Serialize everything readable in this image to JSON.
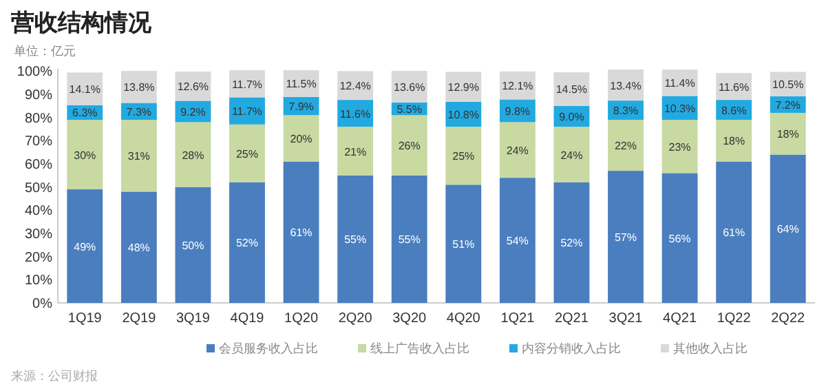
{
  "chart_data": {
    "type": "bar",
    "stacked": true,
    "title": "营收结构情况",
    "subtitle": "单位：亿元",
    "categories": [
      "1Q19",
      "2Q19",
      "3Q19",
      "4Q19",
      "1Q20",
      "2Q20",
      "3Q20",
      "4Q20",
      "1Q21",
      "2Q21",
      "3Q21",
      "4Q21",
      "1Q22",
      "2Q22"
    ],
    "series": [
      {
        "name": "会员服务收入占比",
        "color": "#4a7ebf",
        "values": [
          49,
          48,
          50,
          52,
          61,
          55,
          55,
          51,
          54,
          52,
          57,
          56,
          61,
          64
        ],
        "value_labels": [
          "49%",
          "48%",
          "50%",
          "52%",
          "61%",
          "55%",
          "55%",
          "51%",
          "54%",
          "52%",
          "57%",
          "56%",
          "61%",
          "64%"
        ]
      },
      {
        "name": "线上广告收入占比",
        "color": "#c8d9a2",
        "values": [
          30,
          31,
          28,
          25,
          20,
          21,
          26,
          25,
          24,
          24,
          22,
          23,
          18,
          18
        ],
        "value_labels": [
          "30%",
          "31%",
          "28%",
          "25%",
          "20%",
          "21%",
          "26%",
          "25%",
          "24%",
          "24%",
          "22%",
          "23%",
          "18%",
          "18%"
        ]
      },
      {
        "name": "内容分销收入占比",
        "color": "#22a9e0",
        "values": [
          6.3,
          7.3,
          9.2,
          11.7,
          7.9,
          11.6,
          5.5,
          10.8,
          9.8,
          9.0,
          8.3,
          10.3,
          8.6,
          7.2
        ],
        "value_labels": [
          "6.3%",
          "7.3%",
          "9.2%",
          "11.7%",
          "7.9%",
          "11.6%",
          "5.5%",
          "10.8%",
          "9.8%",
          "9.0%",
          "8.3%",
          "10.3%",
          "8.6%",
          "7.2%"
        ]
      },
      {
        "name": "其他收入占比",
        "color": "#d9d9d9",
        "values": [
          14.1,
          13.8,
          12.6,
          11.7,
          11.5,
          12.4,
          13.6,
          12.9,
          12.1,
          14.5,
          13.4,
          11.4,
          11.6,
          10.5
        ],
        "value_labels": [
          "14.1%",
          "13.8%",
          "12.6%",
          "11.7%",
          "11.5%",
          "12.4%",
          "13.6%",
          "12.9%",
          "12.1%",
          "14.5%",
          "13.4%",
          "11.4%",
          "11.6%",
          "10.5%"
        ]
      }
    ],
    "ylim": [
      0,
      101
    ],
    "yticks": [
      {
        "value": 0,
        "label": "0%"
      },
      {
        "value": 10,
        "label": "10%"
      },
      {
        "value": 20,
        "label": "20%"
      },
      {
        "value": 30,
        "label": "30%"
      },
      {
        "value": 40,
        "label": "40%"
      },
      {
        "value": 50,
        "label": "50%"
      },
      {
        "value": 60,
        "label": "60%"
      },
      {
        "value": 70,
        "label": "70%"
      },
      {
        "value": 80,
        "label": "80%"
      },
      {
        "value": 90,
        "label": "90%"
      },
      {
        "value": 100,
        "label": "100%"
      }
    ],
    "legend": "bottom",
    "annotations": [
      "来源：公司财报"
    ]
  }
}
